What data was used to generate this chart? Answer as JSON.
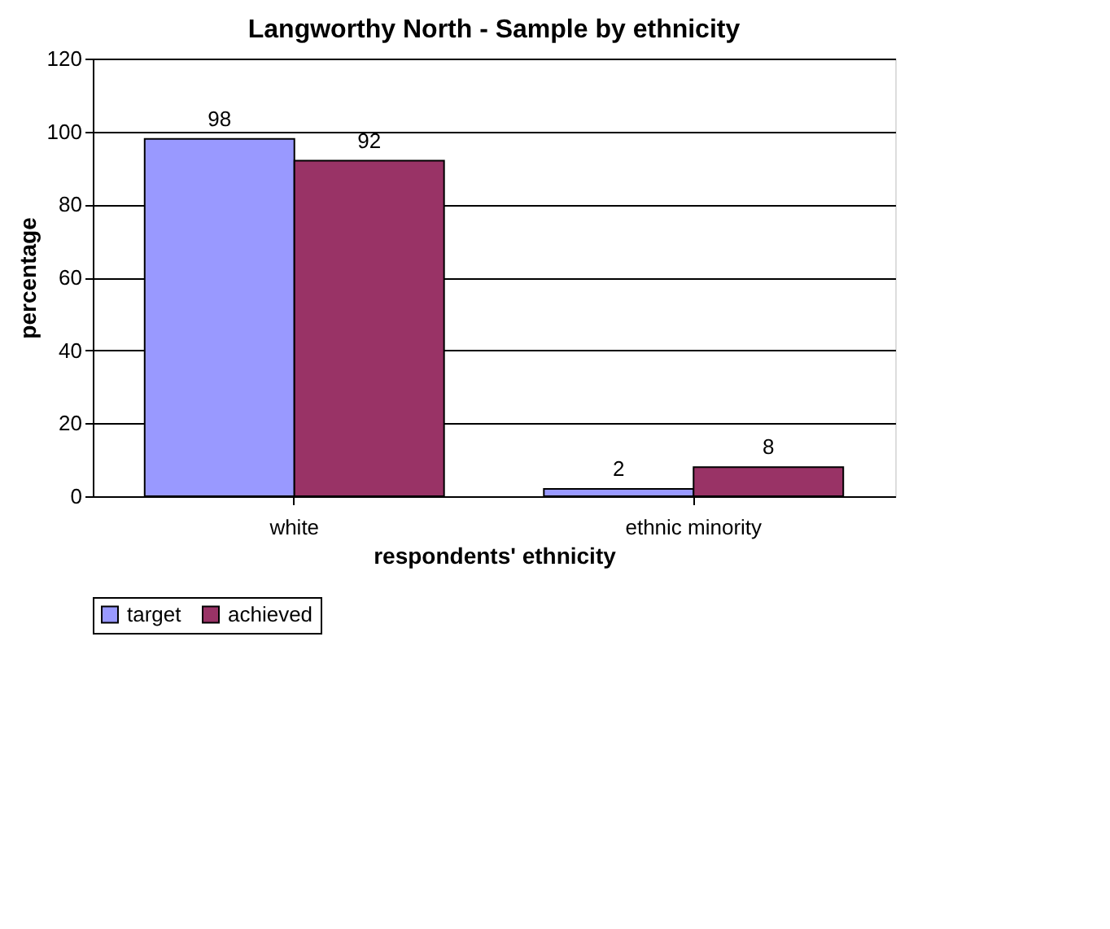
{
  "chart_data": {
    "type": "bar",
    "title": "Langworthy North - Sample by ethnicity",
    "xlabel": "respondents' ethnicity",
    "ylabel": "percentage",
    "categories": [
      "white",
      "ethnic minority"
    ],
    "series": [
      {
        "name": "target",
        "color": "#9999ff",
        "values": [
          98,
          2
        ]
      },
      {
        "name": "achieved",
        "color": "#993366",
        "values": [
          92,
          8
        ]
      }
    ],
    "ylim": [
      0,
      120
    ],
    "yticks": [
      0,
      20,
      40,
      60,
      80,
      100,
      120
    ],
    "grid": "y",
    "legend": "bottom",
    "data_labels": true
  }
}
